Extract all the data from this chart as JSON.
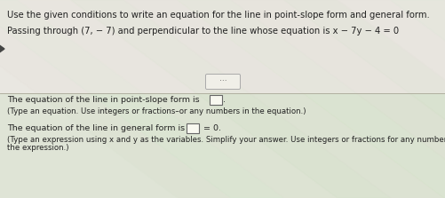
{
  "bg_top_color": "#e8e6e0",
  "bg_bottom_color": "#d8e4d0",
  "stripe_colors": [
    "#dce8d4",
    "#e8e4d8",
    "#d4e0cc",
    "#e4dcd0"
  ],
  "title_text": "Use the given conditions to write an equation for the line in point-slope form and general form.",
  "subtitle_text": "Passing through (7, − 7) and perpendicular to the line whose equation is x − 7y − 4 = 0",
  "dots_label": "···",
  "line1_prefix": "The equation of the line in point-slope form is",
  "line1_suffix": ".",
  "line1_note": "(Type an equation. Use integers or fractions–or any numbers in the equation.)",
  "line2_prefix": "The equation of the line in general form is",
  "line2_mid": " = 0.",
  "line2_note1": "(Type an expression using x and y as the variables. Simplify your answer. Use integers or fractions for any number",
  "line2_note2": "the expression.)",
  "divider_color": "#b0b0a0",
  "text_color": "#222222",
  "box_color": "#f8f8f0",
  "box_border": "#666666",
  "title_fontsize": 7.2,
  "body_fontsize": 6.8,
  "note_fontsize": 6.2,
  "dot_btn_color": "#f0efe8",
  "dot_btn_border": "#aaaaaa"
}
